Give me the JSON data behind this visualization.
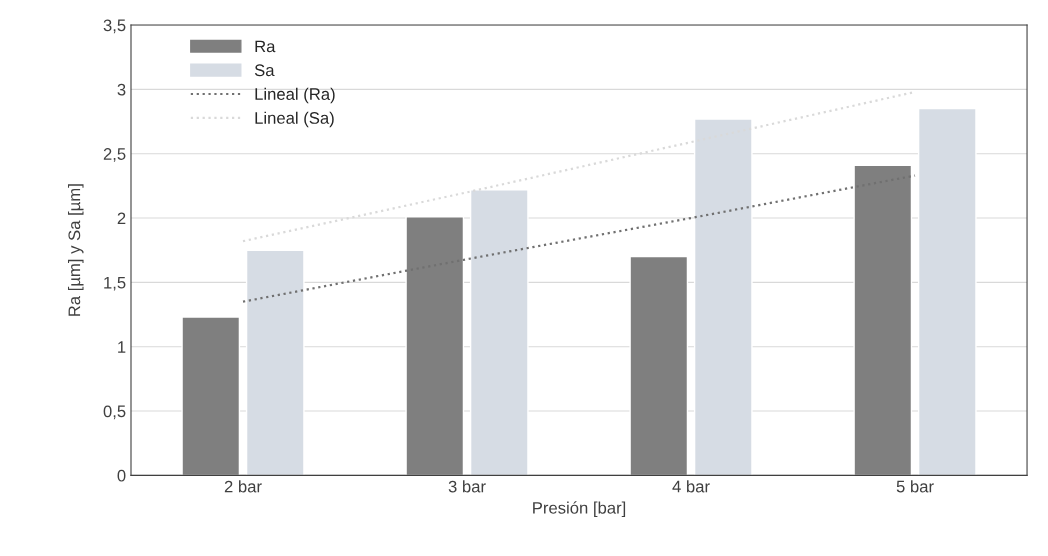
{
  "chart_data": {
    "type": "bar",
    "xlabel": "Presión [bar]",
    "ylabel": "Ra [µm] y Sa [µm]",
    "categories": [
      "2 bar",
      "3 bar",
      "4 bar",
      "5 bar"
    ],
    "series": [
      {
        "name": "Ra",
        "color": "#7f7f7f",
        "values": [
          1.23,
          2.01,
          1.7,
          2.41
        ]
      },
      {
        "name": "Sa",
        "color": "#d6dce4",
        "values": [
          1.75,
          2.22,
          2.77,
          2.85
        ]
      },
      {
        "name": "Lineal (Ra)",
        "type": "line",
        "line_style": "dotted",
        "color": "#707070",
        "values": [
          1.35,
          1.68,
          2.0,
          2.33
        ]
      },
      {
        "name": "Lineal (Sa)",
        "type": "line",
        "line_style": "dotted",
        "color": "#d9d9d9",
        "values": [
          1.82,
          2.2,
          2.59,
          2.98
        ]
      }
    ],
    "ylim": [
      0,
      3.5
    ],
    "yticks": [
      0,
      {
        "value": 0.5,
        "label": "0,5"
      },
      1,
      {
        "value": 1.5,
        "label": "1,5"
      },
      2,
      {
        "value": 2.5,
        "label": "2,5"
      },
      3,
      {
        "value": 3.5,
        "label": "3,5"
      }
    ],
    "grid": "y",
    "legend": "top left"
  }
}
